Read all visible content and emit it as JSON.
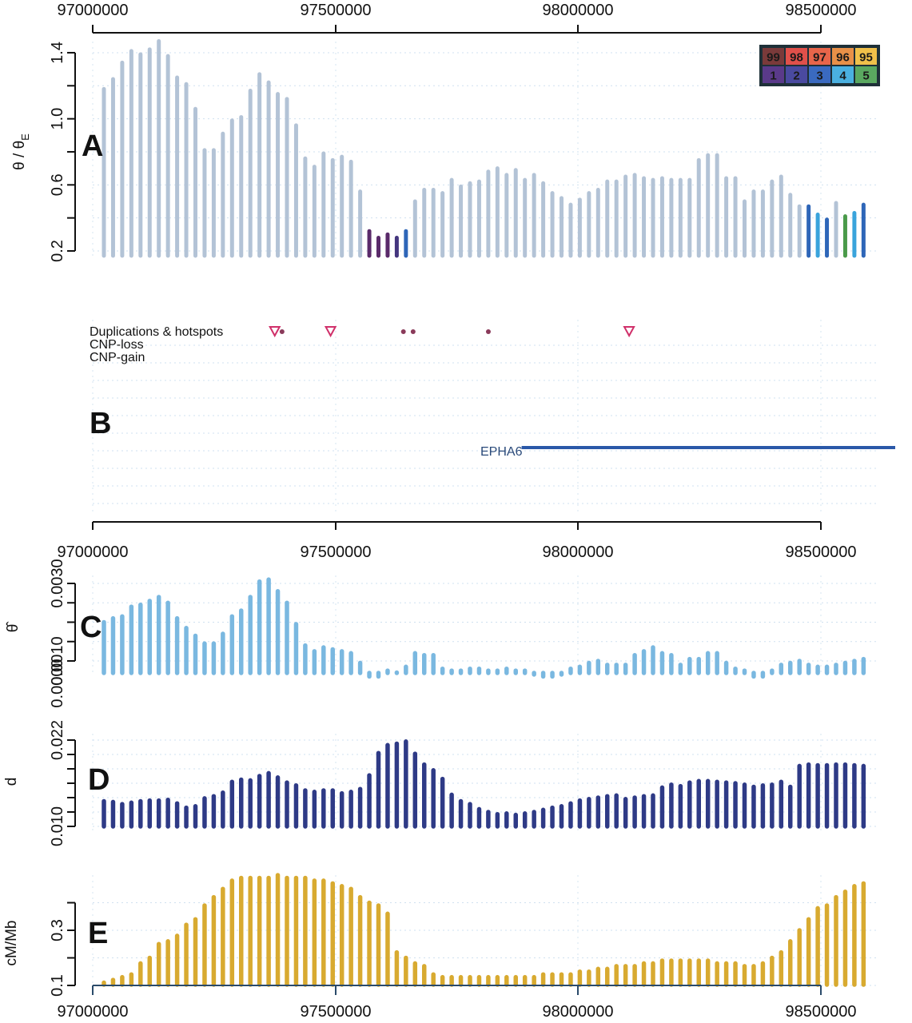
{
  "chart_data": [
    {
      "id": "A",
      "type": "bar",
      "panel_letter": "A",
      "ylabel": "θ/θE",
      "ylabel_main": "θ / θ",
      "ylabel_sub": "E",
      "yticks": [
        0.2,
        0.6,
        1.0,
        1.4
      ],
      "yticks_minor": [
        0.2,
        0.4,
        0.6,
        0.8,
        1.0,
        1.2,
        1.4
      ],
      "ylim": [
        0.16,
        1.5
      ],
      "xlabel": "",
      "xlim": [
        97000000,
        98500000
      ],
      "xticks": [
        "97000000",
        "97500000",
        "98000000",
        "98500000"
      ],
      "default_color": "#b3c3d6",
      "values": [
        1.18,
        1.24,
        1.34,
        1.41,
        1.39,
        1.42,
        1.47,
        1.38,
        1.25,
        1.21,
        1.06,
        0.81,
        0.81,
        0.91,
        0.99,
        1.01,
        1.17,
        1.27,
        1.22,
        1.15,
        1.12,
        0.96,
        0.76,
        0.71,
        0.79,
        0.75,
        0.77,
        0.74,
        0.56,
        0.32,
        0.28,
        0.3,
        0.28,
        0.32,
        0.5,
        0.57,
        0.57,
        0.55,
        0.63,
        0.59,
        0.61,
        0.62,
        0.68,
        0.7,
        0.66,
        0.69,
        0.63,
        0.66,
        0.61,
        0.55,
        0.52,
        0.48,
        0.51,
        0.55,
        0.57,
        0.62,
        0.62,
        0.65,
        0.66,
        0.64,
        0.63,
        0.64,
        0.63,
        0.63,
        0.63,
        0.75,
        0.78,
        0.78,
        0.64,
        0.64,
        0.5,
        0.56,
        0.56,
        0.62,
        0.65,
        0.54,
        0.47,
        0.47,
        0.42,
        0.39,
        0.49,
        0.41,
        0.43,
        0.48
      ],
      "highlight": [
        {
          "index": 29,
          "class": "1"
        },
        {
          "index": 30,
          "class": "1"
        },
        {
          "index": 31,
          "class": "1"
        },
        {
          "index": 32,
          "class": "2"
        },
        {
          "index": 33,
          "class": "3"
        },
        {
          "index": 77,
          "class": "3"
        },
        {
          "index": 78,
          "class": "4"
        },
        {
          "index": 79,
          "class": "3"
        },
        {
          "index": 81,
          "class": "5"
        },
        {
          "index": 82,
          "class": "4"
        },
        {
          "index": 83,
          "class": "3"
        }
      ],
      "legend": {
        "position": "top-right",
        "top_row": [
          {
            "label": "99",
            "color": "#7a3a3a"
          },
          {
            "label": "98",
            "color": "#e0504a"
          },
          {
            "label": "97",
            "color": "#e8654a"
          },
          {
            "label": "96",
            "color": "#e89048"
          },
          {
            "label": "95",
            "color": "#f0c04a"
          }
        ],
        "bottom_row": [
          {
            "label": "1",
            "color": "#5a3a8a"
          },
          {
            "label": "2",
            "color": "#4a4aa0"
          },
          {
            "label": "3",
            "color": "#3a6ac0"
          },
          {
            "label": "4",
            "color": "#4ab0e0"
          },
          {
            "label": "5",
            "color": "#5aa860"
          }
        ]
      },
      "grid": true
    },
    {
      "id": "B",
      "type": "track",
      "panel_letter": "B",
      "track_labels": [
        "Duplications & hotspots",
        "CNP-loss",
        "CNP-gain"
      ],
      "hotspots_triangles": [
        97375000,
        97490000,
        98105000
      ],
      "duplication_points": [
        97390000,
        97640000,
        97660000,
        97815000
      ],
      "triangle_color": "#d0306a",
      "point_color": "#8a3a5a",
      "genes": [
        {
          "name": "EPHA6",
          "start": 97900000,
          "end": 98660000,
          "color": "#2a58a8"
        }
      ],
      "xlim": [
        97000000,
        98500000
      ],
      "xticks": [
        "97000000",
        "97500000",
        "98000000",
        "98500000"
      ]
    },
    {
      "id": "C",
      "type": "bar",
      "panel_letter": "C",
      "ylabel": "θ̂",
      "yticks": [
        "0.0010",
        "0.0030"
      ],
      "ytick_values": [
        0.001,
        0.003
      ],
      "yticks_minor": [
        0.001,
        0.0015,
        0.002,
        0.0025,
        0.003
      ],
      "ylim_bottom_label": "0.0000",
      "ylim": [
        0.00035,
        0.0032
      ],
      "color": "#7ab8e0",
      "values": [
        0.002,
        0.0021,
        0.00215,
        0.0024,
        0.00245,
        0.00255,
        0.00265,
        0.0025,
        0.0021,
        0.00185,
        0.00165,
        0.00145,
        0.00145,
        0.0017,
        0.00215,
        0.0023,
        0.00265,
        0.00305,
        0.0031,
        0.0028,
        0.0025,
        0.00195,
        0.0014,
        0.00125,
        0.00135,
        0.0013,
        0.00125,
        0.0012,
        0.00095,
        0.0006,
        0.0006,
        0.00075,
        0.0007,
        0.00085,
        0.0012,
        0.00115,
        0.00115,
        0.0008,
        0.00075,
        0.00075,
        0.0008,
        0.0008,
        0.00075,
        0.00075,
        0.0008,
        0.00075,
        0.00075,
        0.00065,
        0.0006,
        0.0006,
        0.00065,
        0.0008,
        0.00085,
        0.00095,
        0.001,
        0.0009,
        0.0009,
        0.0009,
        0.00115,
        0.00125,
        0.00135,
        0.0012,
        0.00115,
        0.0009,
        0.00105,
        0.00105,
        0.0012,
        0.0012,
        0.00095,
        0.0008,
        0.00075,
        0.0006,
        0.0006,
        0.00075,
        0.0009,
        0.00095,
        0.001,
        0.0009,
        0.00085,
        0.00085,
        0.0009,
        0.00095,
        0.001,
        0.00105
      ],
      "grid": true
    },
    {
      "id": "D",
      "type": "bar",
      "panel_letter": "D",
      "ylabel": "d",
      "yticks": [
        "0.010",
        "0.022"
      ],
      "ytick_values": [
        0.01,
        0.022
      ],
      "yticks_minor": [
        0.01,
        0.012,
        0.014,
        0.016,
        0.018,
        0.02,
        0.022
      ],
      "ylim": [
        0.0095,
        0.0235
      ],
      "color": "#2e3a86",
      "values": [
        0.0135,
        0.0134,
        0.0131,
        0.0133,
        0.0135,
        0.0136,
        0.0136,
        0.0137,
        0.0132,
        0.0126,
        0.0128,
        0.0139,
        0.0142,
        0.0147,
        0.0162,
        0.0165,
        0.0164,
        0.017,
        0.0174,
        0.0168,
        0.0161,
        0.0157,
        0.015,
        0.0148,
        0.015,
        0.015,
        0.0146,
        0.0148,
        0.0152,
        0.0171,
        0.0202,
        0.0213,
        0.0215,
        0.0218,
        0.0201,
        0.0186,
        0.0178,
        0.0166,
        0.0144,
        0.0135,
        0.0131,
        0.0124,
        0.012,
        0.0117,
        0.0118,
        0.0116,
        0.0118,
        0.012,
        0.0123,
        0.0126,
        0.0128,
        0.0132,
        0.0136,
        0.0138,
        0.014,
        0.0142,
        0.0143,
        0.0138,
        0.014,
        0.0142,
        0.0143,
        0.0154,
        0.0158,
        0.0156,
        0.0161,
        0.0163,
        0.0163,
        0.0162,
        0.0161,
        0.016,
        0.0158,
        0.0155,
        0.0157,
        0.0158,
        0.0162,
        0.0155,
        0.0184,
        0.0186,
        0.0185,
        0.0185,
        0.0186,
        0.0186,
        0.0185,
        0.0184
      ],
      "grid": true
    },
    {
      "id": "E",
      "type": "bar",
      "panel_letter": "E",
      "ylabel": "cM/Mb",
      "yticks": [
        "0.1",
        "0.3"
      ],
      "ytick_values": [
        0.1,
        0.3
      ],
      "yticks_minor": [
        0.1,
        0.2,
        0.3,
        0.4
      ],
      "ylim": [
        0.1,
        0.51
      ],
      "color": "#d8aa30",
      "values": [
        0.11,
        0.12,
        0.13,
        0.14,
        0.18,
        0.2,
        0.25,
        0.26,
        0.28,
        0.32,
        0.34,
        0.39,
        0.42,
        0.45,
        0.48,
        0.49,
        0.49,
        0.49,
        0.49,
        0.5,
        0.49,
        0.49,
        0.49,
        0.48,
        0.48,
        0.47,
        0.46,
        0.45,
        0.42,
        0.4,
        0.39,
        0.36,
        0.22,
        0.2,
        0.18,
        0.17,
        0.14,
        0.13,
        0.13,
        0.13,
        0.13,
        0.13,
        0.13,
        0.13,
        0.13,
        0.13,
        0.13,
        0.13,
        0.14,
        0.14,
        0.14,
        0.14,
        0.15,
        0.15,
        0.16,
        0.16,
        0.17,
        0.17,
        0.17,
        0.18,
        0.18,
        0.19,
        0.19,
        0.19,
        0.19,
        0.19,
        0.19,
        0.18,
        0.18,
        0.18,
        0.17,
        0.17,
        0.18,
        0.2,
        0.22,
        0.26,
        0.3,
        0.34,
        0.38,
        0.39,
        0.42,
        0.44,
        0.46,
        0.47
      ],
      "xlim": [
        97000000,
        98500000
      ],
      "xticks": [
        "97000000",
        "97500000",
        "98000000",
        "98500000"
      ],
      "grid": true
    }
  ],
  "axis": {
    "top_ticks": [
      "97000000",
      "97500000",
      "98000000",
      "98500000"
    ],
    "middle_ticks": [
      "97000000",
      "97500000",
      "98000000",
      "98500000"
    ],
    "bottom_ticks": [
      "97000000",
      "97500000",
      "98000000",
      "98500000"
    ]
  },
  "track_labels": {
    "dup": "Duplications & hotspots",
    "loss": "CNP-loss",
    "gain": "CNP-gain",
    "gene": "EPHA6"
  },
  "panel_letters": {
    "a": "A",
    "b": "B",
    "c": "C",
    "d": "D",
    "e": "E"
  },
  "ylabels": {
    "a_main": "θ / θ",
    "a_sub": "E",
    "c": "θ̂",
    "d": "d",
    "e": "cM/Mb"
  },
  "class_colors": {
    "1": "#5a2a6a",
    "2": "#44367e",
    "3": "#2e66b8",
    "4": "#3aa4dc",
    "5": "#4a9a4a"
  }
}
